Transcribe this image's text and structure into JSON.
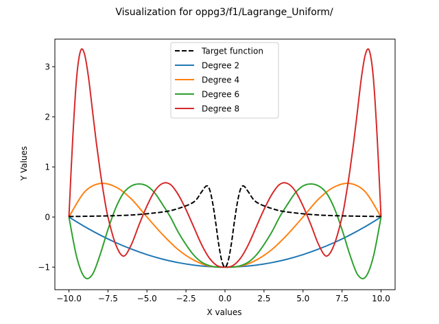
{
  "chart_data": {
    "type": "line",
    "title": "Visualization for oppg3/f1/Lagrange_Uniform/",
    "xlabel": "X values",
    "ylabel": "Y Values",
    "xlim": [
      -10.9,
      10.9
    ],
    "ylim": [
      -1.45,
      3.55
    ],
    "grid": false,
    "legend_position": "top-center",
    "xticks": [
      {
        "value": -10.0,
        "label": "−10.0"
      },
      {
        "value": -7.5,
        "label": "−7.5"
      },
      {
        "value": -5.0,
        "label": "−5.0"
      },
      {
        "value": -2.5,
        "label": "−2.5"
      },
      {
        "value": 0.0,
        "label": "0.0"
      },
      {
        "value": 2.5,
        "label": "2.5"
      },
      {
        "value": 5.0,
        "label": "5.0"
      },
      {
        "value": 7.5,
        "label": "7.5"
      },
      {
        "value": 10.0,
        "label": "10.0"
      }
    ],
    "yticks": [
      {
        "value": -1,
        "label": "−1"
      },
      {
        "value": 0,
        "label": "0"
      },
      {
        "value": 1,
        "label": "1"
      },
      {
        "value": 2,
        "label": "2"
      },
      {
        "value": 3,
        "label": "3"
      }
    ],
    "series": [
      {
        "name": "Target function",
        "color": "#000000",
        "dashed": true,
        "x": [
          -10,
          -8,
          -6,
          -4,
          -3,
          -2,
          -1.5,
          -1.2,
          -1,
          -0.8,
          -0.6,
          -0.4,
          -0.2,
          0,
          0.2,
          0.4,
          0.6,
          0.8,
          1,
          1.2,
          1.5,
          2,
          3,
          4,
          6,
          8,
          10
        ],
        "y": [
          0.01,
          0.02,
          0.04,
          0.1,
          0.17,
          0.3,
          0.5,
          0.62,
          0.56,
          0.3,
          -0.1,
          -0.55,
          -0.88,
          -1.0,
          -0.88,
          -0.55,
          -0.1,
          0.3,
          0.56,
          0.62,
          0.5,
          0.3,
          0.17,
          0.1,
          0.04,
          0.02,
          0.01
        ]
      },
      {
        "name": "Degree 2",
        "color": "#1f77b4",
        "dashed": false,
        "x": [
          -10,
          -9,
          -8,
          -7,
          -6,
          -5,
          -4,
          -3,
          -2,
          -1,
          0,
          1,
          2,
          3,
          4,
          5,
          6,
          7,
          8,
          9,
          10
        ],
        "y": [
          0.0,
          -0.19,
          -0.36,
          -0.51,
          -0.64,
          -0.75,
          -0.84,
          -0.91,
          -0.96,
          -0.99,
          -1.0,
          -0.99,
          -0.96,
          -0.91,
          -0.84,
          -0.75,
          -0.64,
          -0.51,
          -0.36,
          -0.19,
          0.0
        ]
      },
      {
        "name": "Degree 4",
        "color": "#ff7f0e",
        "dashed": false,
        "x": [
          -10,
          -9,
          -8,
          -7,
          -6,
          -5,
          -4,
          -3,
          -2,
          -1,
          0,
          1,
          2,
          3,
          4,
          5,
          6,
          7,
          8,
          9,
          10
        ],
        "y": [
          0.0,
          0.5,
          0.67,
          0.6,
          0.36,
          0.0,
          -0.35,
          -0.65,
          -0.86,
          -0.98,
          -1.0,
          -0.98,
          -0.86,
          -0.65,
          -0.35,
          0.0,
          0.36,
          0.6,
          0.67,
          0.5,
          0.0
        ]
      },
      {
        "name": "Degree 6",
        "color": "#2ca02c",
        "dashed": false,
        "x": [
          -10,
          -9.5,
          -9,
          -8.5,
          -8,
          -7.5,
          -7,
          -6.5,
          -6,
          -5.5,
          -5,
          -4.5,
          -4,
          -3.5,
          -3,
          -2.5,
          -2,
          -1.5,
          -1,
          -0.5,
          0,
          0.5,
          1,
          1.5,
          2,
          2.5,
          3,
          3.5,
          4,
          4.5,
          5,
          5.5,
          6,
          6.5,
          7,
          7.5,
          8,
          8.5,
          9,
          9.5,
          10
        ],
        "y": [
          0.0,
          -0.8,
          -1.2,
          -1.15,
          -0.75,
          -0.25,
          0.18,
          0.48,
          0.62,
          0.66,
          0.62,
          0.48,
          0.25,
          0.0,
          -0.3,
          -0.55,
          -0.76,
          -0.9,
          -0.97,
          -1.0,
          -1.0,
          -1.0,
          -0.97,
          -0.9,
          -0.76,
          -0.55,
          -0.3,
          0.0,
          0.25,
          0.48,
          0.62,
          0.66,
          0.62,
          0.48,
          0.18,
          -0.25,
          -0.75,
          -1.15,
          -1.2,
          -0.8,
          0.0
        ]
      },
      {
        "name": "Degree 8",
        "color": "#d62728",
        "dashed": false,
        "x": [
          -10,
          -9.75,
          -9.5,
          -9.25,
          -9,
          -8.75,
          -8.5,
          -8.25,
          -8,
          -7.75,
          -7.5,
          -7,
          -6.5,
          -6,
          -5.5,
          -5,
          -4.5,
          -4,
          -3.5,
          -3,
          -2.5,
          -2,
          -1.5,
          -1,
          -0.5,
          0,
          0.5,
          1,
          1.5,
          2,
          2.5,
          3,
          3.5,
          4,
          4.5,
          5,
          5.5,
          6,
          6.5,
          7,
          7.5,
          7.75,
          8,
          8.25,
          8.5,
          8.75,
          9,
          9.25,
          9.5,
          9.75,
          10
        ],
        "y": [
          0.0,
          1.6,
          2.8,
          3.32,
          3.25,
          2.8,
          2.15,
          1.5,
          0.92,
          0.42,
          0.0,
          -0.55,
          -0.78,
          -0.55,
          -0.15,
          0.22,
          0.52,
          0.67,
          0.65,
          0.45,
          0.15,
          -0.2,
          -0.55,
          -0.82,
          -0.97,
          -1.0,
          -0.97,
          -0.82,
          -0.55,
          -0.2,
          0.15,
          0.45,
          0.65,
          0.67,
          0.52,
          0.22,
          -0.15,
          -0.55,
          -0.78,
          -0.55,
          0.0,
          0.42,
          0.92,
          1.5,
          2.15,
          2.8,
          3.25,
          3.32,
          2.8,
          1.6,
          0.0
        ]
      }
    ]
  }
}
